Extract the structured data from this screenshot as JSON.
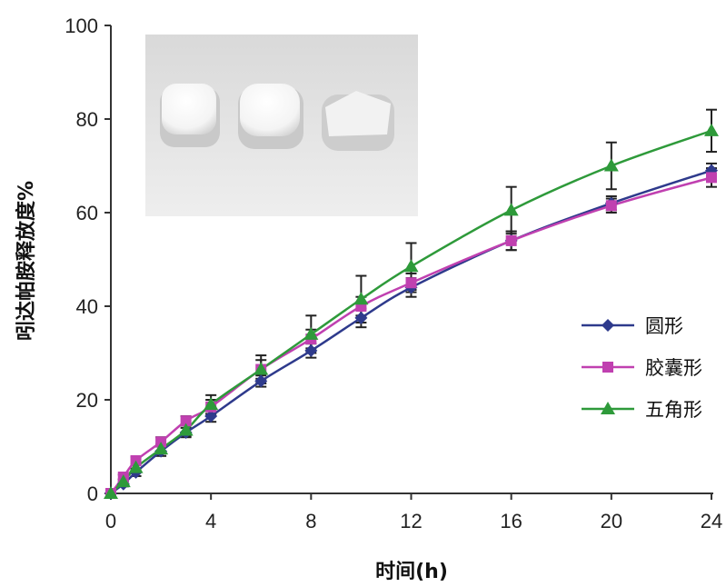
{
  "chart_data": {
    "type": "line",
    "xlabel": "时间(h)",
    "ylabel": "吲达帕胺释放度%",
    "xlim": [
      0,
      24
    ],
    "ylim": [
      0,
      100
    ],
    "xticks": [
      0,
      4,
      8,
      12,
      16,
      20,
      24
    ],
    "yticks": [
      0,
      20,
      40,
      60,
      80,
      100
    ],
    "grid": false,
    "legend_position": "right",
    "x": [
      0,
      0.5,
      1,
      2,
      3,
      4,
      6,
      8,
      10,
      12,
      16,
      20,
      24
    ],
    "series": [
      {
        "name": "圆形",
        "color": "#2e3a8c",
        "marker": "diamond",
        "values": [
          0,
          2,
          4.5,
          9,
          13,
          16.5,
          24,
          30.5,
          37.5,
          44,
          54,
          62,
          69
        ],
        "errors": [
          0,
          0.5,
          0.8,
          1,
          1,
          1.2,
          1.2,
          1.5,
          2,
          2,
          2,
          1.5,
          1.5
        ]
      },
      {
        "name": "胶囊形",
        "color": "#c040b0",
        "marker": "square",
        "values": [
          0,
          3.5,
          7,
          11,
          15.5,
          18.5,
          26.5,
          33,
          40,
          45,
          54,
          61.5,
          67.5
        ],
        "errors": [
          0,
          0.5,
          0.8,
          1,
          1,
          1.5,
          2,
          2,
          2,
          2,
          2,
          1.5,
          2
        ]
      },
      {
        "name": "五角形",
        "color": "#2e9a3a",
        "marker": "triangle",
        "values": [
          0,
          2.5,
          5.5,
          9.5,
          13.5,
          19,
          26.5,
          34,
          41.5,
          48.5,
          60.5,
          70,
          77.5
        ],
        "errors": [
          0,
          0.5,
          0.8,
          1,
          1.2,
          2,
          3,
          4,
          5,
          5,
          5,
          5,
          4.5
        ]
      }
    ],
    "inset_image": "photo of three white tablets (round, capsule-shaped, pentagonal)"
  }
}
